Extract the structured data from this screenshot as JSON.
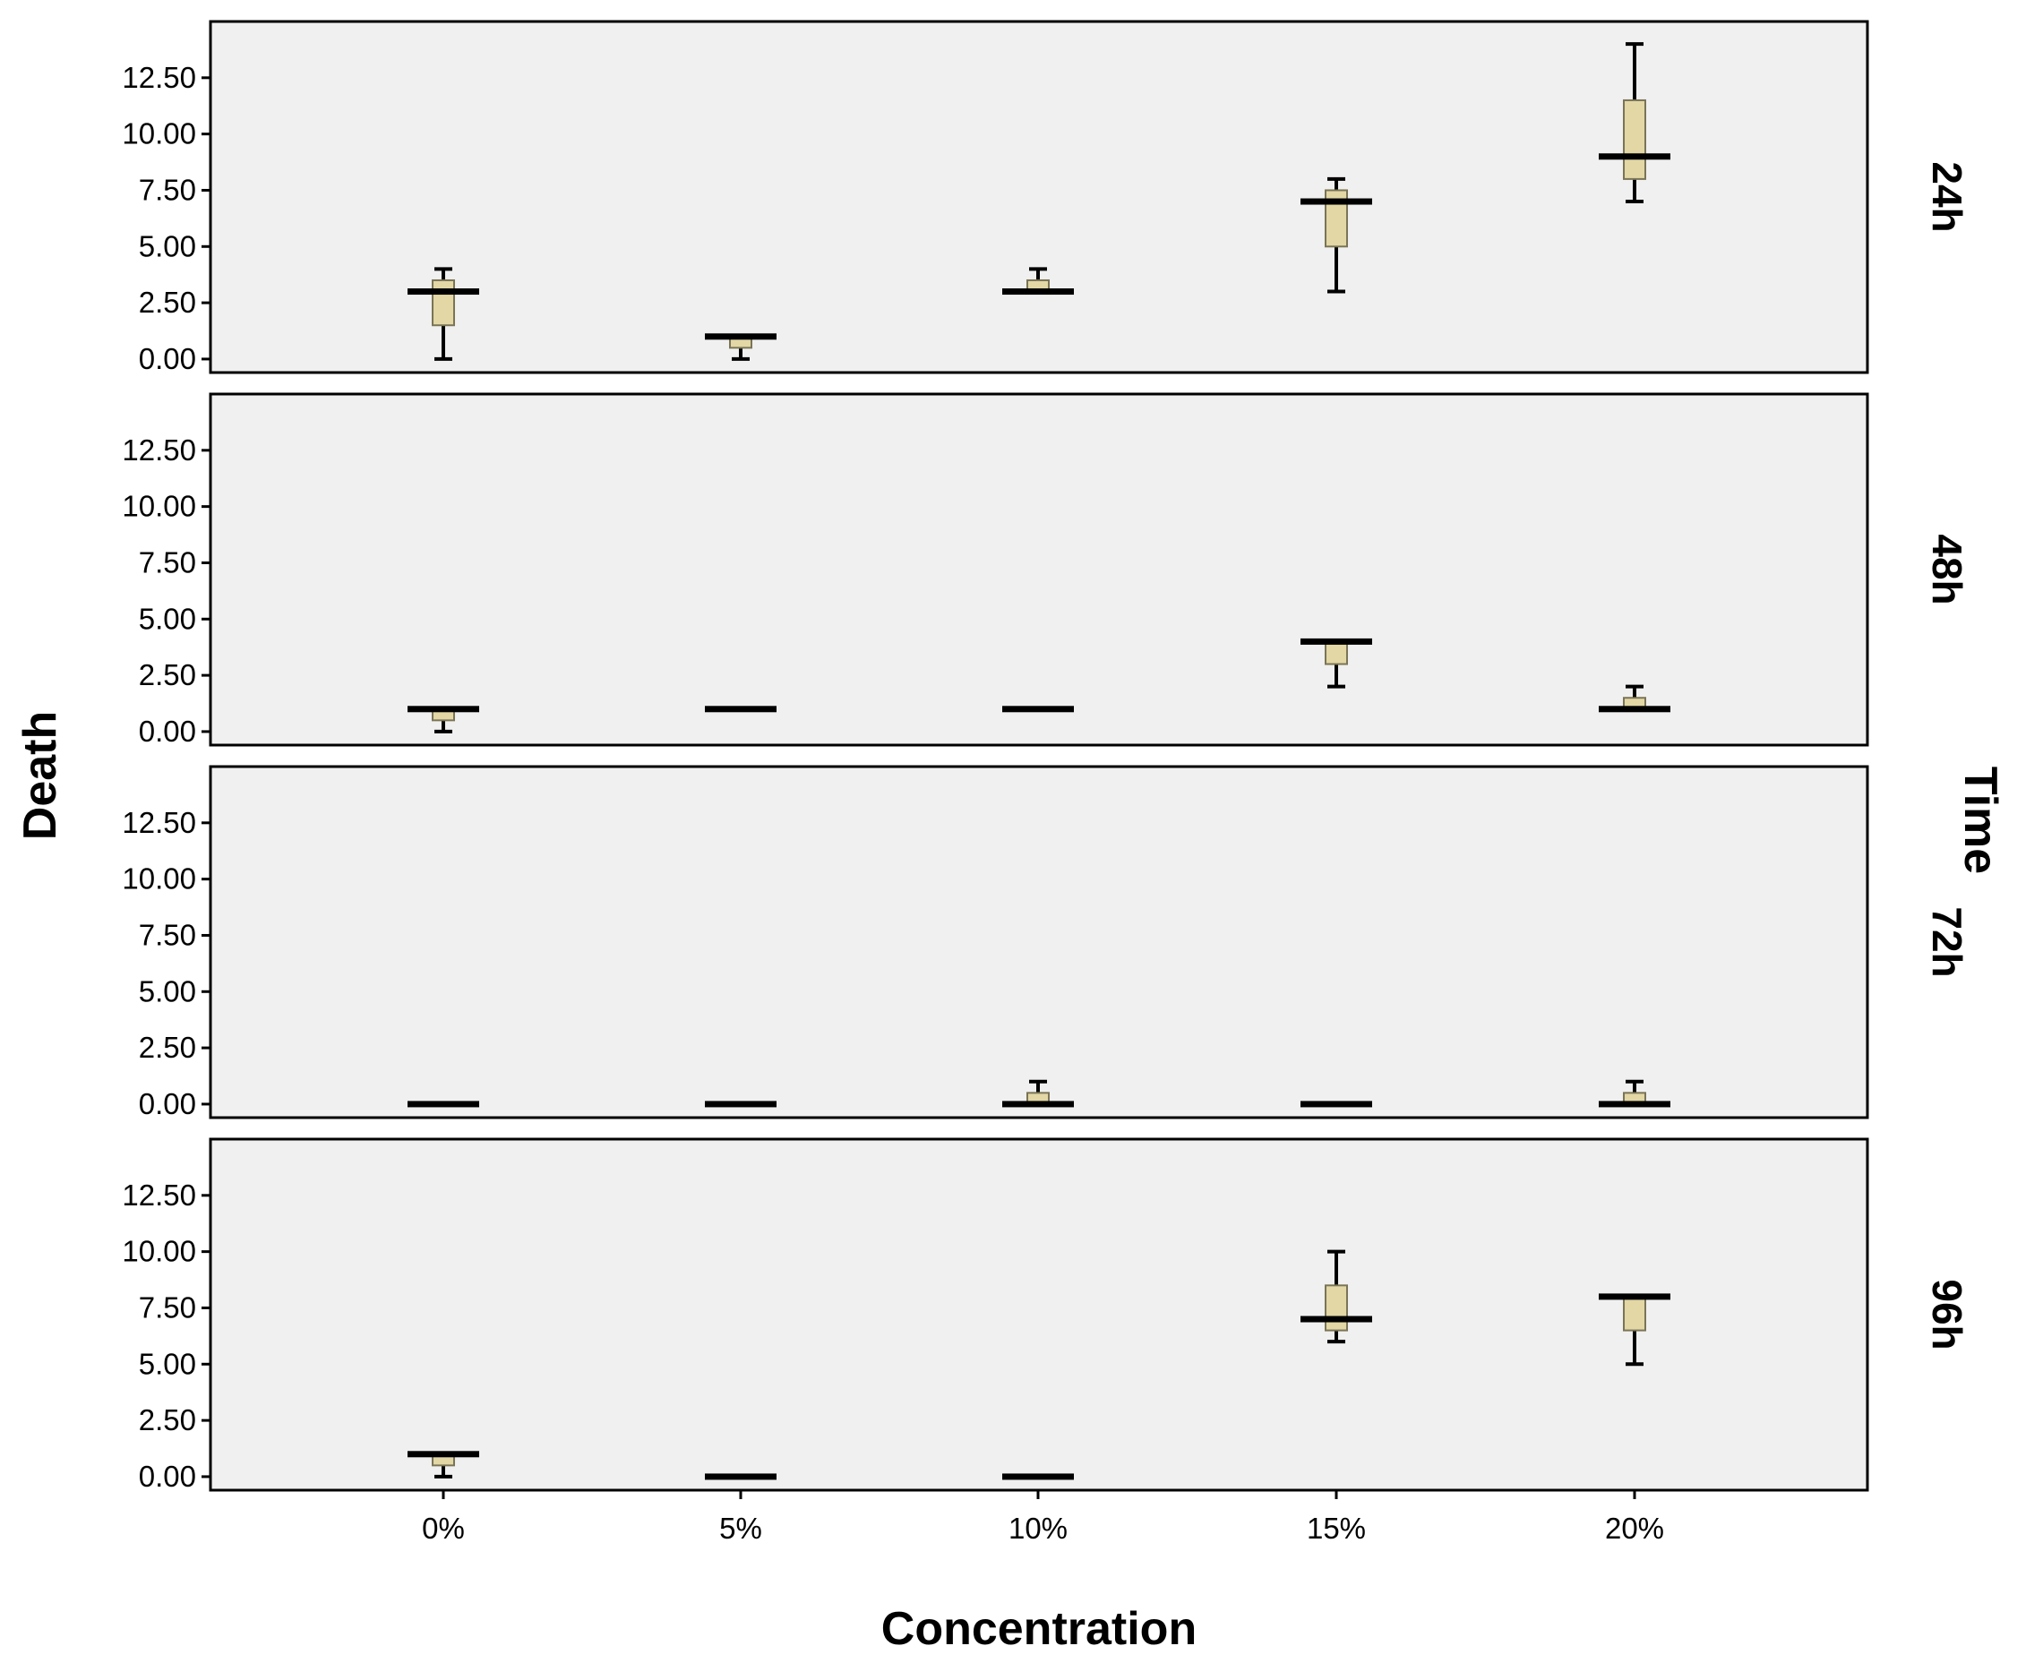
{
  "chart_data": {
    "type": "boxplot",
    "xlabel": "Concentration",
    "ylabel": "Death",
    "facet_label": "Time",
    "categories": [
      "0%",
      "5%",
      "10%",
      "15%",
      "20%"
    ],
    "y_ticks": [
      "0.00",
      "2.50",
      "5.00",
      "7.50",
      "10.00",
      "12.50"
    ],
    "ylim": [
      -0.6,
      15.0
    ],
    "grid": false,
    "colors": {
      "panel_background": "#f0f0f0",
      "box_fill": "#e2d7a5",
      "box_stroke": "#7a7456",
      "median_whisker": "#000000"
    },
    "panels": [
      {
        "label": "24h",
        "boxes": [
          {
            "category": "0%",
            "min": 0,
            "q1": 1.5,
            "median": 3,
            "q3": 3.5,
            "max": 4
          },
          {
            "category": "5%",
            "min": 0,
            "q1": 0.5,
            "median": 1,
            "q3": 1,
            "max": 1
          },
          {
            "category": "10%",
            "min": 3,
            "q1": 3,
            "median": 3,
            "q3": 3.5,
            "max": 4
          },
          {
            "category": "15%",
            "min": 3,
            "q1": 5,
            "median": 7,
            "q3": 7.5,
            "max": 8
          },
          {
            "category": "20%",
            "min": 7,
            "q1": 8,
            "median": 9,
            "q3": 11.5,
            "max": 14
          }
        ]
      },
      {
        "label": "48h",
        "boxes": [
          {
            "category": "0%",
            "min": 0,
            "q1": 0.5,
            "median": 1,
            "q3": 1,
            "max": 1
          },
          {
            "category": "5%",
            "min": 1,
            "q1": 1,
            "median": 1,
            "q3": 1,
            "max": 1
          },
          {
            "category": "10%",
            "min": 1,
            "q1": 1,
            "median": 1,
            "q3": 1,
            "max": 1
          },
          {
            "category": "15%",
            "min": 2,
            "q1": 3,
            "median": 4,
            "q3": 4,
            "max": 4
          },
          {
            "category": "20%",
            "min": 1,
            "q1": 1,
            "median": 1,
            "q3": 1.5,
            "max": 2
          }
        ]
      },
      {
        "label": "72h",
        "boxes": [
          {
            "category": "0%",
            "min": 0,
            "q1": 0,
            "median": 0,
            "q3": 0,
            "max": 0
          },
          {
            "category": "5%",
            "min": 0,
            "q1": 0,
            "median": 0,
            "q3": 0,
            "max": 0
          },
          {
            "category": "10%",
            "min": 0,
            "q1": 0,
            "median": 0,
            "q3": 0.5,
            "max": 1
          },
          {
            "category": "15%",
            "min": 0,
            "q1": 0,
            "median": 0,
            "q3": 0,
            "max": 0
          },
          {
            "category": "20%",
            "min": 0,
            "q1": 0,
            "median": 0,
            "q3": 0.5,
            "max": 1
          }
        ]
      },
      {
        "label": "96h",
        "boxes": [
          {
            "category": "0%",
            "min": 0,
            "q1": 0.5,
            "median": 1,
            "q3": 1,
            "max": 1
          },
          {
            "category": "5%",
            "min": 0,
            "q1": 0,
            "median": 0,
            "q3": 0,
            "max": 0
          },
          {
            "category": "10%",
            "min": 0,
            "q1": 0,
            "median": 0,
            "q3": 0,
            "max": 0
          },
          {
            "category": "15%",
            "min": 6,
            "q1": 6.5,
            "median": 7,
            "q3": 8.5,
            "max": 10
          },
          {
            "category": "20%",
            "min": 5,
            "q1": 6.5,
            "median": 8,
            "q3": 8,
            "max": 8
          }
        ]
      }
    ]
  }
}
